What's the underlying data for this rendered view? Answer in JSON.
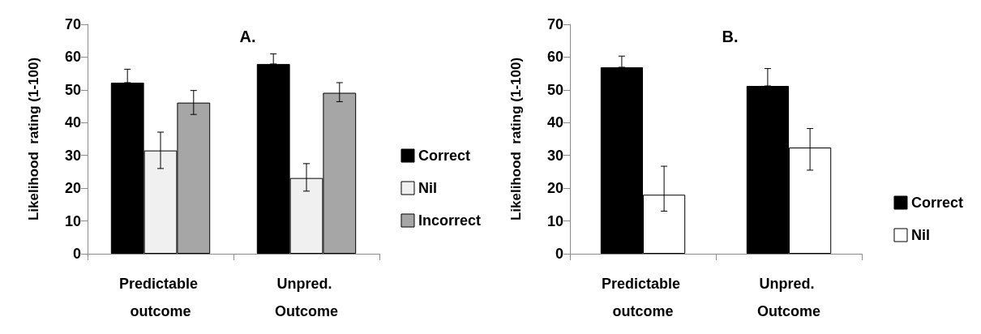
{
  "chart_data": [
    {
      "type": "bar",
      "title": "A.",
      "ylabel": "Likelihood  rating (1-100)",
      "categories": [
        "Predictable outcome",
        "Unpred. Outcome"
      ],
      "ylim": [
        0,
        70
      ],
      "yticks": [
        0,
        10,
        20,
        30,
        40,
        50,
        60,
        70
      ],
      "grid": false,
      "legend": "right",
      "series": [
        {
          "name": "Correct",
          "color": "#000000",
          "values": [
            52.2,
            57.9
          ],
          "errors": [
            [
              52.2,
              56.3
            ],
            [
              57.9,
              61
            ]
          ]
        },
        {
          "name": "Nil",
          "color": "#f0f0f0",
          "values": [
            31.5,
            23.1
          ],
          "errors": [
            [
              26,
              37.1
            ],
            [
              19.1,
              27.5
            ]
          ]
        },
        {
          "name": "Incorrect",
          "color": "#a6a6a6",
          "values": [
            46.1,
            49.1
          ],
          "errors": [
            [
              42.5,
              49.8
            ],
            [
              46.4,
              52.2
            ]
          ]
        }
      ]
    },
    {
      "type": "bar",
      "title": "B.",
      "ylabel": "Likelihood  rating (1-100)",
      "categories": [
        "Predictable outcome",
        "Unpred. Outcome"
      ],
      "ylim": [
        0,
        70
      ],
      "yticks": [
        0,
        10,
        20,
        30,
        40,
        50,
        60,
        70
      ],
      "grid": false,
      "legend": "right",
      "series": [
        {
          "name": "Correct",
          "color": "#000000",
          "values": [
            56.9,
            51.2
          ],
          "errors": [
            [
              56.9,
              60.3
            ],
            [
              51.2,
              56.5
            ]
          ]
        },
        {
          "name": "Nil",
          "color": "#ffffff",
          "values": [
            18,
            32.4
          ],
          "errors": [
            [
              13,
              26.7
            ],
            [
              25.5,
              38.2
            ]
          ]
        }
      ]
    }
  ]
}
